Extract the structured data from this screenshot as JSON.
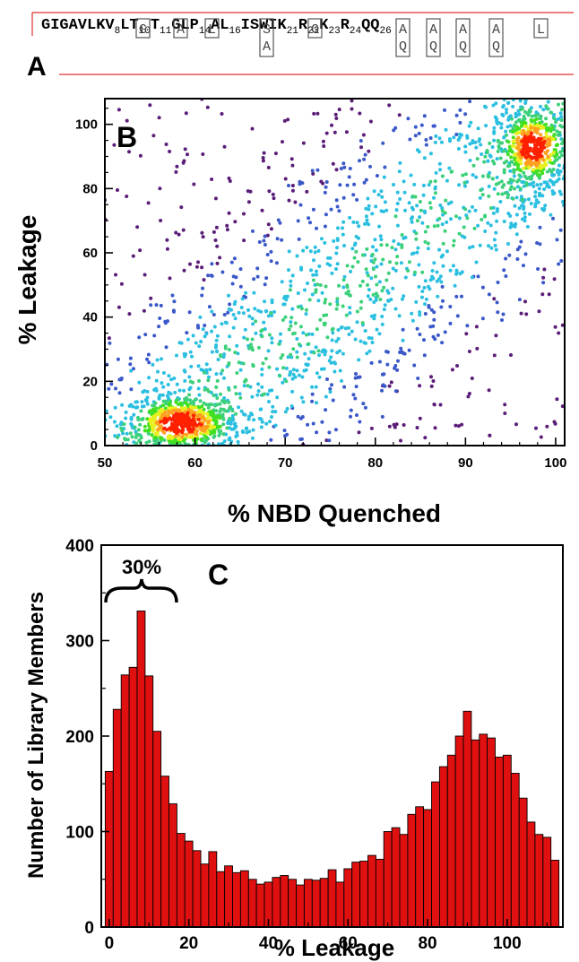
{
  "panel_a": {
    "label": "A",
    "sequence": [
      {
        "t": "GIGAVLKV"
      },
      {
        "t": "8",
        "sub": true
      },
      {
        "t": "LT"
      },
      {
        "t": "10",
        "sub": true
      },
      {
        "t": "T"
      },
      {
        "t": "11",
        "sub": true
      },
      {
        "t": "GLP"
      },
      {
        "t": "14",
        "sub": true
      },
      {
        "t": "AL"
      },
      {
        "t": "16",
        "sub": true
      },
      {
        "t": "ISWIK"
      },
      {
        "t": "21",
        "sub": true
      },
      {
        "t": "R"
      },
      {
        "t": "22",
        "sub": true
      },
      {
        "t": "K"
      },
      {
        "t": "23",
        "sub": true
      },
      {
        "t": "R"
      },
      {
        "t": "24",
        "sub": true
      },
      {
        "t": "QQ"
      },
      {
        "t": "26",
        "sub": true
      }
    ],
    "variants": [
      {
        "residue": "V8",
        "options": [
          "G"
        ]
      },
      {
        "residue": "T10",
        "options": [
          "A"
        ]
      },
      {
        "residue": "T11",
        "options": [
          "L"
        ]
      },
      {
        "residue": "P14",
        "options": [
          "S",
          "A"
        ]
      },
      {
        "residue": "L16",
        "options": [
          "G"
        ]
      },
      {
        "residue": "K21",
        "options": [
          "A",
          "Q"
        ]
      },
      {
        "residue": "R22",
        "options": [
          "A",
          "Q"
        ]
      },
      {
        "residue": "K23",
        "options": [
          "A",
          "Q"
        ]
      },
      {
        "residue": "R24",
        "options": [
          "A",
          "Q"
        ]
      },
      {
        "residue": "Q26",
        "options": [
          "L"
        ]
      }
    ],
    "colors": {
      "rule": "#e03030"
    }
  },
  "chart_data": [
    {
      "panel": "B",
      "type": "scatter",
      "xlabel": "% NBD Quenched",
      "ylabel": "% Leakage",
      "xlim": [
        50,
        101
      ],
      "ylim": [
        0,
        108
      ],
      "xticks": [
        50,
        60,
        70,
        80,
        90,
        100
      ],
      "yticks": [
        0,
        20,
        40,
        60,
        80,
        100
      ],
      "density_colormap": [
        "#5a1d78",
        "#3a58c8",
        "#2bbfe0",
        "#3cd07a",
        "#40e020",
        "#e8f020",
        "#ffa020",
        "#ff2000"
      ],
      "clusters": [
        {
          "center": [
            58.5,
            7
          ],
          "spread": [
            3.2,
            4.5
          ],
          "density": "max"
        },
        {
          "center": [
            97.5,
            92
          ],
          "spread": [
            2.0,
            7.0
          ],
          "density": "max"
        },
        {
          "center": [
            75,
            55
          ],
          "spread": "diffuse",
          "density": "low"
        }
      ]
    },
    {
      "panel": "C",
      "type": "bar",
      "xlabel": "% Leakage",
      "ylabel": "Number of Library Members",
      "annotation": "30%",
      "xlim": [
        -2,
        114
      ],
      "ylim": [
        0,
        400
      ],
      "xticks": [
        0,
        20,
        40,
        60,
        80,
        100
      ],
      "yticks": [
        0,
        100,
        200,
        300,
        400
      ],
      "bin_width": 2,
      "bin_start": -1,
      "values": [
        163,
        228,
        264,
        272,
        331,
        263,
        205,
        158,
        129,
        98,
        90,
        80,
        66,
        79,
        58,
        64,
        57,
        59,
        50,
        45,
        47,
        52,
        54,
        50,
        44,
        50,
        49,
        51,
        60,
        47,
        61,
        68,
        69,
        75,
        71,
        100,
        104,
        97,
        118,
        126,
        123,
        152,
        168,
        180,
        200,
        226,
        196,
        202,
        198,
        178,
        180,
        161,
        135,
        110,
        97,
        94,
        70
      ],
      "bar_color": "#e01010"
    }
  ]
}
